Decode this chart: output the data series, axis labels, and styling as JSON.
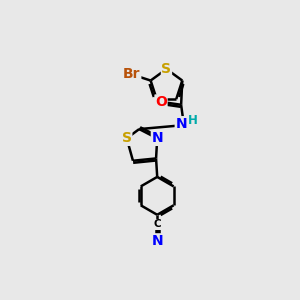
{
  "background_color": "#e8e8e8",
  "bond_color": "#000000",
  "bond_width": 1.8,
  "atom_colors": {
    "S": "#c8a000",
    "N": "#0000ff",
    "O": "#ff0000",
    "Br": "#b8520a",
    "C": "#000000",
    "H": "#00aaaa"
  },
  "font_size_atom": 10,
  "font_size_small": 8.5
}
